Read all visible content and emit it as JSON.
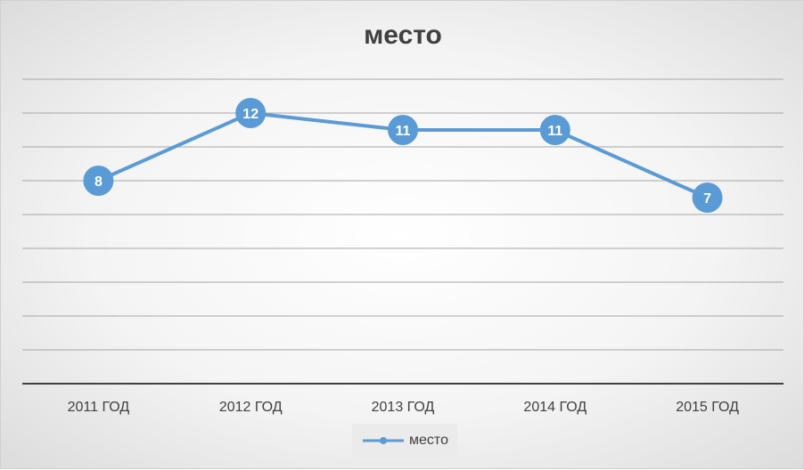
{
  "chart_data": {
    "type": "line",
    "title": "место",
    "categories": [
      "2011 ГОД",
      "2012 ГОД",
      "2013 ГОД",
      "2014 ГОД",
      "2015 ГОД"
    ],
    "series": [
      {
        "name": "место",
        "values": [
          8,
          12,
          11,
          11,
          7
        ]
      }
    ],
    "ylim": [
      -4,
      14
    ],
    "gridlines": true,
    "legend": "bottom",
    "data_labels": true,
    "colors": {
      "series": "#5b9bd5",
      "grid": "#a6a6a6",
      "axis": "#404040"
    }
  }
}
